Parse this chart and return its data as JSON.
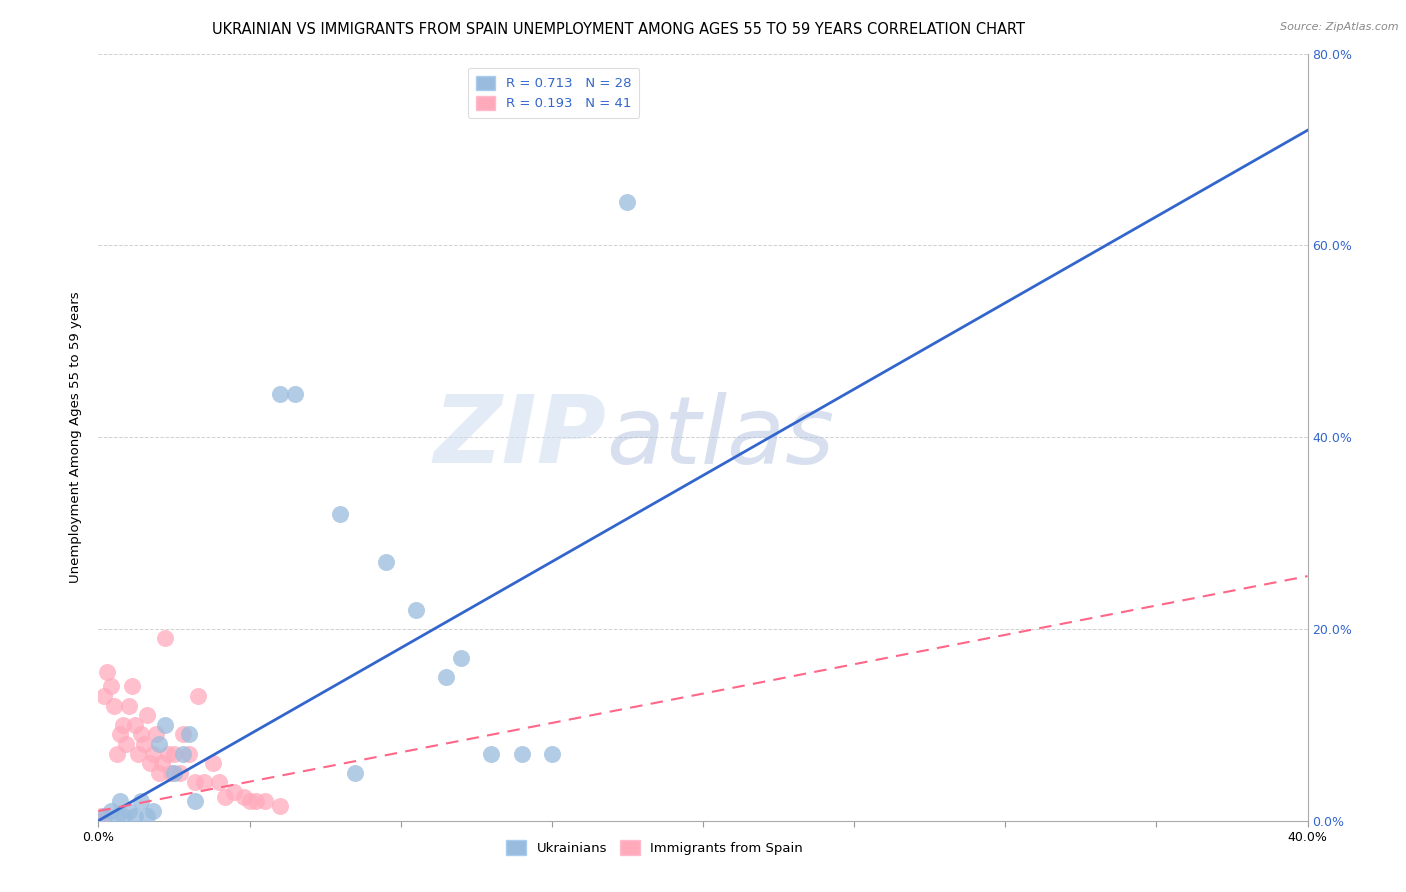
{
  "title": "UKRAINIAN VS IMMIGRANTS FROM SPAIN UNEMPLOYMENT AMONG AGES 55 TO 59 YEARS CORRELATION CHART",
  "source": "Source: ZipAtlas.com",
  "ylabel": "Unemployment Among Ages 55 to 59 years",
  "xlim": [
    0.0,
    0.4
  ],
  "ylim": [
    0.0,
    0.8
  ],
  "xtick_positions": [
    0.0,
    0.05,
    0.1,
    0.15,
    0.2,
    0.25,
    0.3,
    0.35,
    0.4
  ],
  "xtick_labels": [
    "0.0%",
    "",
    "",
    "",
    "",
    "",
    "",
    "",
    "40.0%"
  ],
  "yticks": [
    0.0,
    0.2,
    0.4,
    0.6,
    0.8
  ],
  "ytick_labels_right": [
    "0.0%",
    "20.0%",
    "40.0%",
    "60.0%",
    "80.0%"
  ],
  "background_color": "#ffffff",
  "watermark_zip": "ZIP",
  "watermark_atlas": "atlas",
  "blue_color": "#99bbdd",
  "pink_color": "#ffaabb",
  "blue_line_color": "#3366cc",
  "pink_line_color": "#ff6688",
  "blue_R": 0.713,
  "blue_N": 28,
  "pink_R": 0.193,
  "pink_N": 41,
  "blue_scatter": [
    [
      0.002,
      0.005
    ],
    [
      0.004,
      0.01
    ],
    [
      0.006,
      0.005
    ],
    [
      0.007,
      0.02
    ],
    [
      0.008,
      0.005
    ],
    [
      0.01,
      0.01
    ],
    [
      0.012,
      0.005
    ],
    [
      0.014,
      0.02
    ],
    [
      0.016,
      0.005
    ],
    [
      0.018,
      0.01
    ],
    [
      0.02,
      0.08
    ],
    [
      0.022,
      0.1
    ],
    [
      0.025,
      0.05
    ],
    [
      0.028,
      0.07
    ],
    [
      0.03,
      0.09
    ],
    [
      0.032,
      0.02
    ],
    [
      0.06,
      0.445
    ],
    [
      0.065,
      0.445
    ],
    [
      0.08,
      0.32
    ],
    [
      0.085,
      0.05
    ],
    [
      0.095,
      0.27
    ],
    [
      0.105,
      0.22
    ],
    [
      0.115,
      0.15
    ],
    [
      0.12,
      0.17
    ],
    [
      0.13,
      0.07
    ],
    [
      0.14,
      0.07
    ],
    [
      0.15,
      0.07
    ],
    [
      0.175,
      0.645
    ]
  ],
  "pink_scatter": [
    [
      0.0,
      0.0
    ],
    [
      0.001,
      0.005
    ],
    [
      0.002,
      0.13
    ],
    [
      0.003,
      0.155
    ],
    [
      0.004,
      0.14
    ],
    [
      0.005,
      0.12
    ],
    [
      0.006,
      0.07
    ],
    [
      0.007,
      0.09
    ],
    [
      0.008,
      0.1
    ],
    [
      0.009,
      0.08
    ],
    [
      0.01,
      0.12
    ],
    [
      0.011,
      0.14
    ],
    [
      0.012,
      0.1
    ],
    [
      0.013,
      0.07
    ],
    [
      0.014,
      0.09
    ],
    [
      0.015,
      0.08
    ],
    [
      0.016,
      0.11
    ],
    [
      0.017,
      0.06
    ],
    [
      0.018,
      0.07
    ],
    [
      0.019,
      0.09
    ],
    [
      0.02,
      0.05
    ],
    [
      0.021,
      0.06
    ],
    [
      0.022,
      0.19
    ],
    [
      0.023,
      0.07
    ],
    [
      0.024,
      0.05
    ],
    [
      0.025,
      0.07
    ],
    [
      0.027,
      0.05
    ],
    [
      0.028,
      0.09
    ],
    [
      0.03,
      0.07
    ],
    [
      0.032,
      0.04
    ],
    [
      0.033,
      0.13
    ],
    [
      0.035,
      0.04
    ],
    [
      0.038,
      0.06
    ],
    [
      0.04,
      0.04
    ],
    [
      0.042,
      0.025
    ],
    [
      0.045,
      0.03
    ],
    [
      0.048,
      0.025
    ],
    [
      0.05,
      0.02
    ],
    [
      0.052,
      0.02
    ],
    [
      0.055,
      0.02
    ],
    [
      0.06,
      0.015
    ]
  ],
  "blue_line": [
    [
      0.0,
      0.0
    ],
    [
      0.4,
      0.72
    ]
  ],
  "pink_line": [
    [
      0.0,
      0.01
    ],
    [
      0.4,
      0.255
    ]
  ],
  "title_fontsize": 10.5,
  "axis_label_fontsize": 9.5,
  "tick_label_fontsize": 9,
  "legend_fontsize": 9.5,
  "source_fontsize": 8
}
